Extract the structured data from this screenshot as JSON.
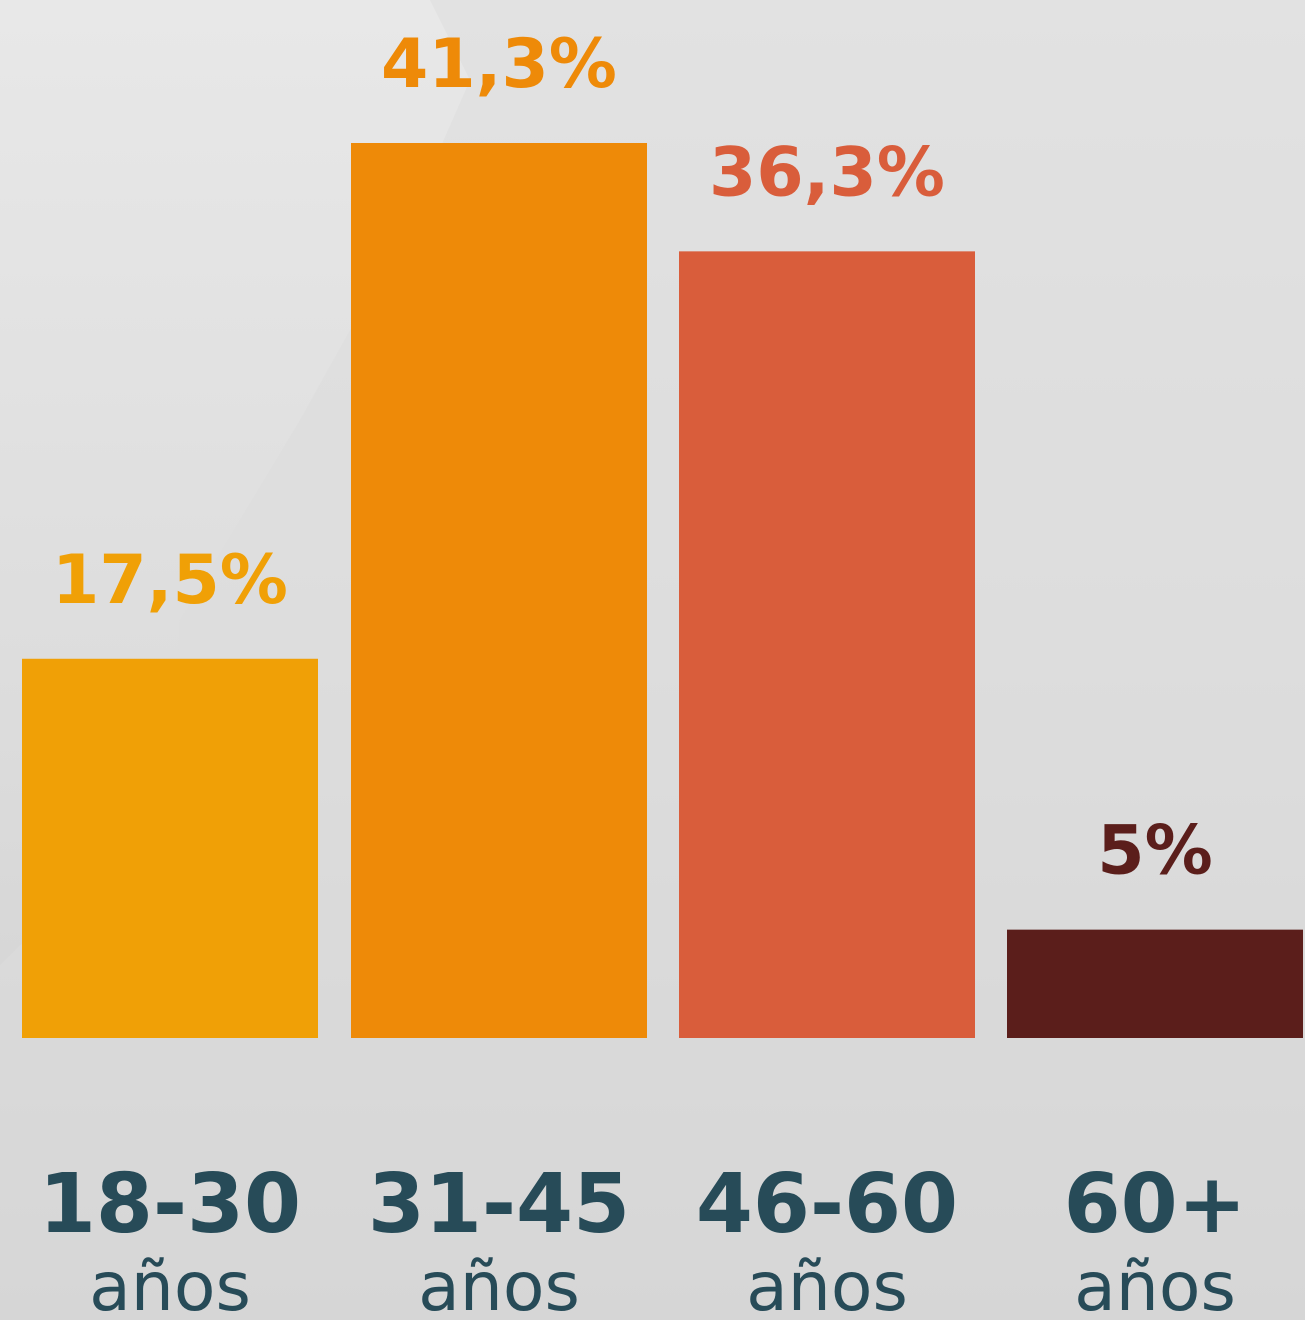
{
  "chart_data": {
    "type": "bar",
    "categories": [
      "18-30",
      "31-45",
      "46-60",
      "60+"
    ],
    "category_sublabels": [
      "años",
      "años",
      "años",
      "años"
    ],
    "values": [
      17.5,
      41.3,
      36.3,
      5
    ],
    "value_labels": [
      "17,5%",
      "41,3%",
      "36,3%",
      "5%"
    ],
    "bar_colors": [
      "#f0a006",
      "#ee8a08",
      "#d95d3b",
      "#5b1e1b"
    ],
    "label_color": "#274b58",
    "ylim": [
      0,
      41.3
    ],
    "grid": false,
    "legend": "none"
  }
}
